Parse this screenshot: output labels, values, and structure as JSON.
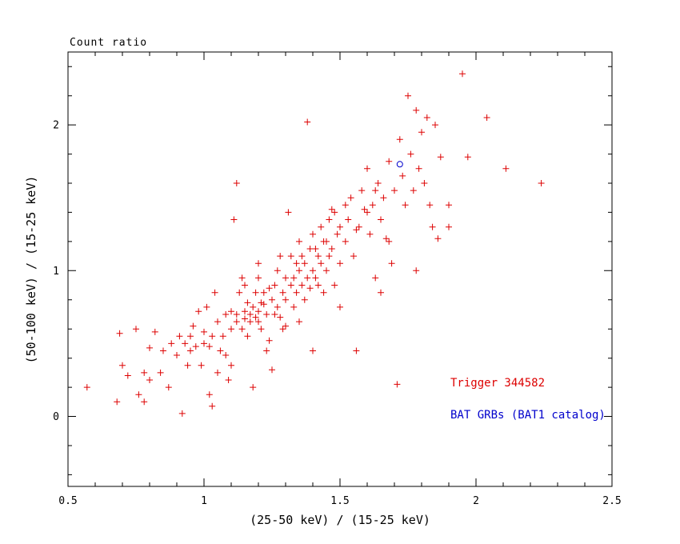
{
  "figure": {
    "background": "#ffffff"
  },
  "chart_data": {
    "type": "scatter",
    "title": "Count ratio",
    "xlabel": "(25-50 keV) / (15-25 keV)",
    "ylabel": "(50-100 keV) / (15-25 keV)",
    "xlim": [
      0.5,
      2.5
    ],
    "ylim": [
      -0.48,
      2.5
    ],
    "xticks": [
      0.5,
      1.0,
      1.5,
      2.0,
      2.5
    ],
    "xtick_labels": [
      "0.5",
      "1",
      "1.5",
      "2",
      "2.5"
    ],
    "yticks": [
      0,
      1,
      2
    ],
    "ytick_labels": [
      "0",
      "1",
      "2"
    ],
    "x_minor_step": 0.1,
    "y_minor_step": 0.2,
    "grid": false,
    "axis_color": "#000000",
    "legend_position": "bottom-right-inside",
    "series": [
      {
        "name": "Trigger 344582",
        "marker": "plus",
        "color": "#dd0000",
        "points": [
          [
            0.57,
            0.2
          ],
          [
            0.68,
            0.1
          ],
          [
            0.69,
            0.57
          ],
          [
            0.7,
            0.35
          ],
          [
            0.72,
            0.28
          ],
          [
            0.75,
            0.6
          ],
          [
            0.76,
            0.15
          ],
          [
            0.78,
            0.1
          ],
          [
            0.78,
            0.3
          ],
          [
            0.8,
            0.25
          ],
          [
            0.8,
            0.47
          ],
          [
            0.82,
            0.58
          ],
          [
            0.84,
            0.3
          ],
          [
            0.85,
            0.45
          ],
          [
            0.87,
            0.2
          ],
          [
            0.88,
            0.5
          ],
          [
            0.9,
            0.42
          ],
          [
            0.91,
            0.55
          ],
          [
            0.92,
            0.02
          ],
          [
            0.93,
            0.5
          ],
          [
            0.94,
            0.35
          ],
          [
            0.95,
            0.55
          ],
          [
            0.95,
            0.45
          ],
          [
            0.96,
            0.62
          ],
          [
            0.97,
            0.48
          ],
          [
            0.98,
            0.72
          ],
          [
            0.99,
            0.35
          ],
          [
            1.0,
            0.5
          ],
          [
            1.0,
            0.58
          ],
          [
            1.01,
            0.75
          ],
          [
            1.02,
            0.15
          ],
          [
            1.02,
            0.48
          ],
          [
            1.03,
            0.07
          ],
          [
            1.03,
            0.55
          ],
          [
            1.04,
            0.85
          ],
          [
            1.05,
            0.3
          ],
          [
            1.05,
            0.65
          ],
          [
            1.06,
            0.45
          ],
          [
            1.07,
            0.55
          ],
          [
            1.08,
            0.7
          ],
          [
            1.08,
            0.42
          ],
          [
            1.09,
            0.25
          ],
          [
            1.1,
            0.6
          ],
          [
            1.1,
            0.72
          ],
          [
            1.1,
            0.35
          ],
          [
            1.11,
            1.35
          ],
          [
            1.12,
            1.6
          ],
          [
            1.12,
            0.65
          ],
          [
            1.12,
            0.7
          ],
          [
            1.13,
            0.85
          ],
          [
            1.14,
            0.6
          ],
          [
            1.14,
            0.95
          ],
          [
            1.15,
            0.67
          ],
          [
            1.15,
            0.72
          ],
          [
            1.15,
            0.9
          ],
          [
            1.16,
            0.55
          ],
          [
            1.16,
            0.78
          ],
          [
            1.17,
            0.7
          ],
          [
            1.17,
            0.65
          ],
          [
            1.18,
            0.75
          ],
          [
            1.18,
            0.2
          ],
          [
            1.19,
            0.68
          ],
          [
            1.19,
            0.85
          ],
          [
            1.2,
            0.72
          ],
          [
            1.2,
            0.65
          ],
          [
            1.2,
            0.95
          ],
          [
            1.2,
            1.05
          ],
          [
            1.21,
            0.6
          ],
          [
            1.21,
            0.78
          ],
          [
            1.22,
            0.77
          ],
          [
            1.22,
            0.85
          ],
          [
            1.23,
            0.45
          ],
          [
            1.23,
            0.7
          ],
          [
            1.24,
            0.52
          ],
          [
            1.24,
            0.88
          ],
          [
            1.25,
            0.8
          ],
          [
            1.25,
            0.32
          ],
          [
            1.26,
            0.9
          ],
          [
            1.26,
            0.7
          ],
          [
            1.27,
            0.75
          ],
          [
            1.27,
            1.0
          ],
          [
            1.28,
            0.68
          ],
          [
            1.28,
            1.1
          ],
          [
            1.29,
            0.85
          ],
          [
            1.29,
            0.6
          ],
          [
            1.3,
            0.95
          ],
          [
            1.3,
            0.62
          ],
          [
            1.3,
            0.8
          ],
          [
            1.31,
            1.4
          ],
          [
            1.32,
            0.9
          ],
          [
            1.32,
            1.1
          ],
          [
            1.33,
            0.75
          ],
          [
            1.33,
            0.95
          ],
          [
            1.34,
            0.85
          ],
          [
            1.34,
            1.05
          ],
          [
            1.35,
            1.0
          ],
          [
            1.35,
            0.65
          ],
          [
            1.35,
            1.2
          ],
          [
            1.36,
            0.9
          ],
          [
            1.36,
            1.1
          ],
          [
            1.37,
            1.05
          ],
          [
            1.37,
            0.8
          ],
          [
            1.38,
            2.02
          ],
          [
            1.38,
            0.95
          ],
          [
            1.39,
            1.15
          ],
          [
            1.39,
            0.88
          ],
          [
            1.4,
            1.0
          ],
          [
            1.4,
            0.45
          ],
          [
            1.4,
            1.25
          ],
          [
            1.41,
            0.95
          ],
          [
            1.41,
            1.15
          ],
          [
            1.42,
            1.1
          ],
          [
            1.42,
            0.9
          ],
          [
            1.43,
            1.3
          ],
          [
            1.43,
            1.05
          ],
          [
            1.44,
            0.85
          ],
          [
            1.44,
            1.2
          ],
          [
            1.45,
            1.2
          ],
          [
            1.45,
            1.0
          ],
          [
            1.46,
            1.35
          ],
          [
            1.46,
            1.1
          ],
          [
            1.47,
            1.15
          ],
          [
            1.47,
            1.42
          ],
          [
            1.48,
            1.4
          ],
          [
            1.48,
            0.9
          ],
          [
            1.49,
            1.25
          ],
          [
            1.5,
            1.3
          ],
          [
            1.5,
            1.05
          ],
          [
            1.5,
            0.75
          ],
          [
            1.52,
            1.2
          ],
          [
            1.52,
            1.45
          ],
          [
            1.53,
            1.35
          ],
          [
            1.54,
            1.5
          ],
          [
            1.55,
            1.1
          ],
          [
            1.56,
            0.45
          ],
          [
            1.56,
            1.28
          ],
          [
            1.57,
            1.3
          ],
          [
            1.58,
            1.55
          ],
          [
            1.59,
            1.42
          ],
          [
            1.6,
            1.4
          ],
          [
            1.6,
            1.7
          ],
          [
            1.61,
            1.25
          ],
          [
            1.62,
            1.45
          ],
          [
            1.63,
            0.95
          ],
          [
            1.63,
            1.55
          ],
          [
            1.64,
            1.6
          ],
          [
            1.65,
            1.35
          ],
          [
            1.65,
            0.85
          ],
          [
            1.66,
            1.5
          ],
          [
            1.67,
            1.22
          ],
          [
            1.68,
            1.75
          ],
          [
            1.68,
            1.2
          ],
          [
            1.69,
            1.05
          ],
          [
            1.7,
            1.55
          ],
          [
            1.71,
            0.22
          ],
          [
            1.72,
            1.9
          ],
          [
            1.73,
            1.65
          ],
          [
            1.74,
            1.45
          ],
          [
            1.75,
            2.2
          ],
          [
            1.76,
            1.8
          ],
          [
            1.77,
            1.55
          ],
          [
            1.78,
            2.1
          ],
          [
            1.78,
            1.0
          ],
          [
            1.79,
            1.7
          ],
          [
            1.8,
            1.95
          ],
          [
            1.81,
            1.6
          ],
          [
            1.82,
            2.05
          ],
          [
            1.83,
            1.45
          ],
          [
            1.84,
            1.3
          ],
          [
            1.85,
            2.0
          ],
          [
            1.86,
            1.22
          ],
          [
            1.87,
            1.78
          ],
          [
            1.9,
            1.45
          ],
          [
            1.9,
            1.3
          ],
          [
            1.95,
            2.35
          ],
          [
            1.97,
            1.78
          ],
          [
            2.04,
            2.05
          ],
          [
            2.11,
            1.7
          ],
          [
            2.24,
            1.6
          ]
        ]
      },
      {
        "name": "BAT GRBs (BAT1 catalog)",
        "marker": "open-circle",
        "color": "#0000cc",
        "points": [
          [
            1.72,
            1.73
          ]
        ]
      }
    ]
  }
}
